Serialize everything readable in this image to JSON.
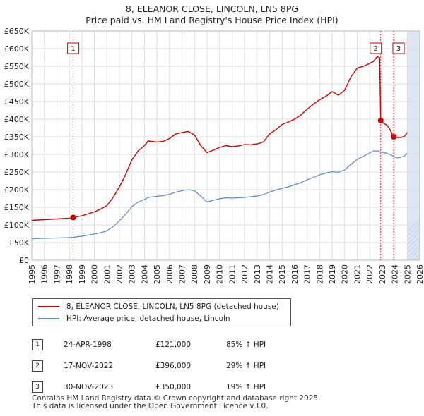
{
  "title_line1": "8, ELEANOR CLOSE, LINCOLN, LN5 8PG",
  "title_line2": "Price paid vs. HM Land Registry's House Price Index (HPI)",
  "legend": {
    "property": "8, ELEANOR CLOSE, LINCOLN, LN5 8PG (detached house)",
    "hpi": "HPI: Average price, detached house, Lincoln"
  },
  "colors": {
    "property": "#cc0000",
    "hpi": "#5b8cc9",
    "grid": "#dddddd",
    "shade": "#dde6f3",
    "marker": "#cc0000"
  },
  "sales": [
    {
      "num": "1",
      "date": "24-APR-1998",
      "price": "£121,000",
      "hpi": "85% ↑ HPI"
    },
    {
      "num": "2",
      "date": "17-NOV-2022",
      "price": "£396,000",
      "hpi": "29% ↑ HPI"
    },
    {
      "num": "3",
      "date": "30-NOV-2023",
      "price": "£350,000",
      "hpi": "19% ↑ HPI"
    }
  ],
  "footer": {
    "line1": "Contains HM Land Registry data © Crown copyright and database right 2025.",
    "line2": "This data is licensed under the Open Government Licence v3.0."
  },
  "chart_data": {
    "type": "line",
    "x_range": [
      1995,
      2026
    ],
    "y_range": [
      0,
      650000
    ],
    "y_ticks": [
      0,
      50000,
      100000,
      150000,
      200000,
      250000,
      300000,
      350000,
      400000,
      450000,
      500000,
      550000,
      600000,
      650000
    ],
    "y_tick_labels": [
      "£0",
      "£50K",
      "£100K",
      "£150K",
      "£200K",
      "£250K",
      "£300K",
      "£350K",
      "£400K",
      "£450K",
      "£500K",
      "£550K",
      "£600K",
      "£650K"
    ],
    "x_ticks": [
      "1995",
      "1996",
      "1997",
      "1998",
      "1999",
      "2000",
      "2001",
      "2002",
      "2003",
      "2004",
      "2005",
      "2006",
      "2007",
      "2008",
      "2009",
      "2010",
      "2011",
      "2012",
      "2013",
      "2014",
      "2015",
      "2016",
      "2017",
      "2018",
      "2019",
      "2020",
      "2021",
      "2022",
      "2023",
      "2024",
      "2025",
      "2026"
    ],
    "forecast_from": 2025.0,
    "series": [
      {
        "name": "8, ELEANOR CLOSE, LINCOLN, LN5 8PG (detached house)",
        "color": "#cc0000",
        "x": [
          1995.0,
          1996.0,
          1997.0,
          1998.0,
          1998.31,
          1999.0,
          2000.0,
          2000.5,
          2001.0,
          2001.5,
          2002.0,
          2002.5,
          2003.0,
          2003.5,
          2004.0,
          2004.3,
          2005.0,
          2005.5,
          2006.0,
          2006.5,
          2007.0,
          2007.5,
          2008.0,
          2008.5,
          2009.0,
          2009.5,
          2010.0,
          2010.5,
          2011.0,
          2011.5,
          2012.0,
          2012.5,
          2013.0,
          2013.5,
          2014.0,
          2014.5,
          2015.0,
          2015.5,
          2016.0,
          2016.5,
          2017.0,
          2017.5,
          2018.0,
          2018.5,
          2019.0,
          2019.5,
          2020.0,
          2020.5,
          2021.0,
          2021.5,
          2022.0,
          2022.3,
          2022.6,
          2022.8,
          2022.88,
          2023.0,
          2023.4,
          2023.6,
          2023.91,
          2024.2,
          2024.5,
          2024.8,
          2025.0
        ],
        "y": [
          113000,
          115000,
          117000,
          119000,
          121000,
          126000,
          137000,
          145000,
          155000,
          178000,
          208000,
          243000,
          285000,
          310000,
          325000,
          338000,
          335000,
          337000,
          345000,
          358000,
          362000,
          365000,
          355000,
          325000,
          305000,
          312000,
          320000,
          325000,
          322000,
          324000,
          328000,
          327000,
          330000,
          335000,
          358000,
          370000,
          385000,
          392000,
          400000,
          412000,
          428000,
          443000,
          455000,
          465000,
          478000,
          468000,
          482000,
          520000,
          545000,
          550000,
          558000,
          564000,
          577000,
          574000,
          396000,
          391000,
          382000,
          372000,
          350000,
          348000,
          348000,
          352000,
          362000
        ]
      },
      {
        "name": "HPI: Average price, detached house, Lincoln",
        "color": "#5b8cc9",
        "x": [
          1995.0,
          1996.0,
          1997.0,
          1998.0,
          1998.31,
          1999.0,
          2000.0,
          2000.5,
          2001.0,
          2001.5,
          2002.0,
          2002.5,
          2003.0,
          2003.5,
          2004.0,
          2004.3,
          2005.0,
          2005.5,
          2006.0,
          2006.5,
          2007.0,
          2007.5,
          2008.0,
          2008.5,
          2009.0,
          2009.5,
          2010.0,
          2010.5,
          2011.0,
          2011.5,
          2012.0,
          2012.5,
          2013.0,
          2013.5,
          2014.0,
          2014.5,
          2015.0,
          2015.5,
          2016.0,
          2016.5,
          2017.0,
          2017.5,
          2018.0,
          2018.5,
          2019.0,
          2019.5,
          2020.0,
          2020.5,
          2021.0,
          2021.5,
          2022.0,
          2022.3,
          2022.6,
          2022.8,
          2022.88,
          2023.0,
          2023.4,
          2023.6,
          2023.91,
          2024.2,
          2024.5,
          2024.8,
          2025.0
        ],
        "y": [
          61000,
          62000,
          63000,
          64000,
          65000,
          68000,
          74000,
          78000,
          83000,
          95000,
          112000,
          130000,
          152000,
          165000,
          172000,
          178000,
          181000,
          183000,
          187000,
          193000,
          197000,
          200000,
          197000,
          182000,
          165000,
          170000,
          174000,
          177000,
          176000,
          177000,
          178000,
          180000,
          182000,
          186000,
          193000,
          199000,
          204000,
          208000,
          214000,
          220000,
          228000,
          235000,
          242000,
          247000,
          251000,
          249000,
          256000,
          272000,
          286000,
          295000,
          304000,
          310000,
          310000,
          308000,
          307000,
          306000,
          303000,
          300000,
          294000,
          290000,
          292000,
          296000,
          304000
        ]
      }
    ],
    "sale_markers": [
      {
        "label": "1",
        "x": 1998.31,
        "y": 121000
      },
      {
        "label": "2",
        "x": 2022.88,
        "y": 396000
      },
      {
        "label": "3",
        "x": 2023.91,
        "y": 350000
      }
    ]
  }
}
